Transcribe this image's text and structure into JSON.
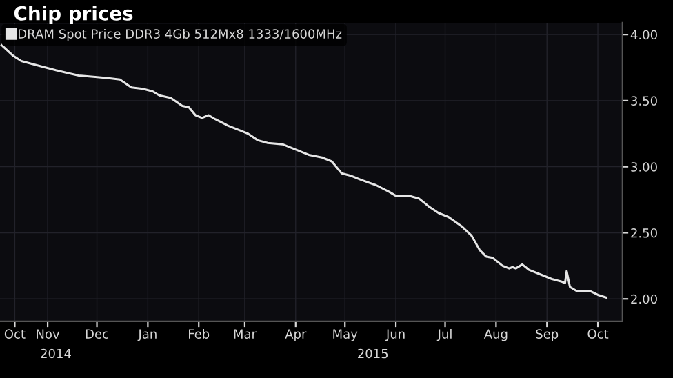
{
  "chart_data": {
    "type": "line",
    "title": "Chip prices",
    "legend": "top left",
    "grid": true,
    "marker": "none",
    "line_style": "solid",
    "x": [
      "2014-10-18",
      "2014-10-25",
      "2014-10-30",
      "2014-11-08",
      "2014-11-20",
      "2014-11-27",
      "2014-12-04",
      "2014-12-14",
      "2014-12-22",
      "2014-12-29",
      "2015-01-05",
      "2015-01-12",
      "2015-01-18",
      "2015-01-22",
      "2015-01-29",
      "2015-02-05",
      "2015-02-09",
      "2015-02-13",
      "2015-02-17",
      "2015-02-21",
      "2015-02-25",
      "2015-03-05",
      "2015-03-13",
      "2015-03-17",
      "2015-03-23",
      "2015-03-29",
      "2015-04-07",
      "2015-04-13",
      "2015-04-23",
      "2015-05-01",
      "2015-05-07",
      "2015-05-13",
      "2015-05-19",
      "2015-05-25",
      "2015-06-03",
      "2015-06-11",
      "2015-06-15",
      "2015-06-23",
      "2015-06-29",
      "2015-07-05",
      "2015-07-11",
      "2015-07-17",
      "2015-07-25",
      "2015-07-31",
      "2015-08-05",
      "2015-08-09",
      "2015-08-13",
      "2015-08-19",
      "2015-08-23",
      "2015-08-25",
      "2015-08-27",
      "2015-08-31",
      "2015-09-04",
      "2015-09-12",
      "2015-09-18",
      "2015-09-24",
      "2015-09-26",
      "2015-09-27",
      "2015-09-29",
      "2015-10-03",
      "2015-10-11",
      "2015-10-16",
      "2015-10-21"
    ],
    "series": [
      {
        "name": "DRAM Spot Price DDR3 4Gb 512Mx8 1333/1600MHz",
        "color": "#e6e6e6",
        "values": [
          3.92,
          3.84,
          3.8,
          3.77,
          3.73,
          3.71,
          3.69,
          3.68,
          3.67,
          3.66,
          3.6,
          3.59,
          3.57,
          3.54,
          3.52,
          3.46,
          3.45,
          3.39,
          3.37,
          3.39,
          3.36,
          3.31,
          3.27,
          3.25,
          3.2,
          3.18,
          3.17,
          3.14,
          3.09,
          3.07,
          3.04,
          2.95,
          2.93,
          2.9,
          2.86,
          2.81,
          2.78,
          2.78,
          2.76,
          2.7,
          2.65,
          2.62,
          2.55,
          2.48,
          2.37,
          2.32,
          2.31,
          2.25,
          2.23,
          2.24,
          2.23,
          2.26,
          2.22,
          2.18,
          2.15,
          2.13,
          2.12,
          2.21,
          2.09,
          2.06,
          2.06,
          2.03,
          2.01
        ]
      }
    ],
    "xlim": [
      "2014-10-17",
      "2015-10-31"
    ],
    "xticks": [
      {
        "value": "2014-10-26",
        "label": "Oct"
      },
      {
        "value": "2014-11-15",
        "label": "Nov"
      },
      {
        "value": "2014-12-15",
        "label": "Dec"
      },
      {
        "value": "2015-01-15",
        "label": "Jan"
      },
      {
        "value": "2015-02-15",
        "label": "Feb"
      },
      {
        "value": "2015-03-15",
        "label": "Mar"
      },
      {
        "value": "2015-04-15",
        "label": "Apr"
      },
      {
        "value": "2015-05-15",
        "label": "May"
      },
      {
        "value": "2015-06-15",
        "label": "Jun"
      },
      {
        "value": "2015-07-15",
        "label": "Jul"
      },
      {
        "value": "2015-08-15",
        "label": "Aug"
      },
      {
        "value": "2015-09-15",
        "label": "Sep"
      },
      {
        "value": "2015-10-16",
        "label": "Oct"
      }
    ],
    "x2lim": [
      "2014-10-17",
      "2015-10-31"
    ],
    "x2ticks": [
      {
        "value": "2014-11-20",
        "label": "2014"
      },
      {
        "value": "2015-06-01",
        "label": "2015"
      }
    ],
    "ylim": [
      1.83,
      4.09
    ],
    "yticks": [
      {
        "value": 2,
        "label": "2.00"
      },
      {
        "value": 2.5,
        "label": "2.50"
      },
      {
        "value": 3,
        "label": "3.00"
      },
      {
        "value": 3.5,
        "label": "3.50"
      },
      {
        "value": 4,
        "label": "4.00"
      }
    ]
  }
}
